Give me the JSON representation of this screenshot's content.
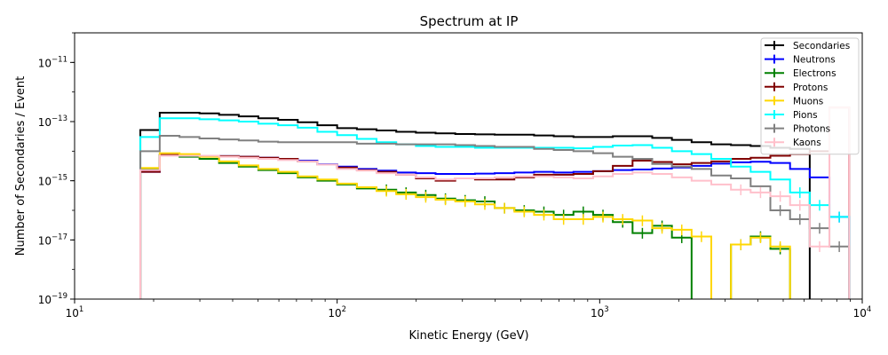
{
  "chart_data": {
    "type": "line",
    "title": "Spectrum at IP",
    "xlabel": "Kinetic Energy (GeV)",
    "ylabel": "Number of Secondaries / Event",
    "xscale": "log",
    "yscale": "log",
    "xlim": [
      10,
      10000
    ],
    "ylim": [
      1e-19,
      1e-10
    ],
    "x_major_ticks": [
      {
        "value": 10,
        "label": "10",
        "sup": "1"
      },
      {
        "value": 100,
        "label": "10",
        "sup": "2"
      },
      {
        "value": 1000,
        "label": "10",
        "sup": "3"
      },
      {
        "value": 10000,
        "label": "10",
        "sup": "4"
      }
    ],
    "y_major_ticks": [
      {
        "value": 1e-19,
        "label": "10",
        "sup": "−19"
      },
      {
        "value": 1e-17,
        "label": "10",
        "sup": "−17"
      },
      {
        "value": 1e-15,
        "label": "10",
        "sup": "−15"
      },
      {
        "value": 1e-13,
        "label": "10",
        "sup": "−13"
      },
      {
        "value": 1e-11,
        "label": "10",
        "sup": "−11"
      }
    ],
    "legend_position": "top-right",
    "style": "step histogram with error bars",
    "bin_edges": [
      17.8,
      21.1,
      25.1,
      29.9,
      35.5,
      42.2,
      50.1,
      59.6,
      70.8,
      84.1,
      100,
      118.9,
      141.3,
      167.9,
      199.5,
      237.1,
      281.8,
      335,
      398.1,
      473.2,
      562.3,
      668.3,
      794.3,
      944.1,
      1122,
      1334,
      1585,
      1884,
      2239,
      2661,
      3162,
      3758,
      4467,
      5309,
      6310,
      7499,
      8913
    ],
    "series": [
      {
        "name": "Secondaries",
        "color": "#000000",
        "values": [
          5.2e-14,
          2e-13,
          2e-13,
          1.9e-13,
          1.7e-13,
          1.5e-13,
          1.3e-13,
          1.15e-13,
          9.5e-14,
          7.5e-14,
          6e-14,
          5.5e-14,
          5e-14,
          4.5e-14,
          4.2e-14,
          4e-14,
          3.8e-14,
          3.7e-14,
          3.6e-14,
          3.6e-14,
          3.4e-14,
          3.2e-14,
          3e-14,
          3e-14,
          3.2e-14,
          3.2e-14,
          2.8e-14,
          2.4e-14,
          2e-14,
          1.7e-14,
          1.6e-14,
          1.5e-14,
          1.3e-14,
          1.2e-14,
          null,
          null
        ]
      },
      {
        "name": "Neutrons",
        "color": "#0000ff",
        "values": [
          2e-15,
          7.5e-15,
          7.5e-15,
          7e-15,
          6.8e-15,
          6.5e-15,
          6e-15,
          5.5e-15,
          4.8e-15,
          3.6e-15,
          3e-15,
          2.5e-15,
          2.2e-15,
          1.9e-15,
          1.8e-15,
          1.7e-15,
          1.7e-15,
          1.75e-15,
          1.8e-15,
          1.9e-15,
          2e-15,
          1.9e-15,
          2e-15,
          2.1e-15,
          2.3e-15,
          2.4e-15,
          2.6e-15,
          2.8e-15,
          3.2e-15,
          3.8e-15,
          4.2e-15,
          4.4e-15,
          4e-15,
          2.5e-15,
          1.3e-15,
          6e-17
        ]
      },
      {
        "name": "Electrons",
        "color": "#008000",
        "values": [
          2.5e-15,
          7.5e-15,
          6.5e-15,
          5.5e-15,
          4e-15,
          3e-15,
          2.3e-15,
          1.8e-15,
          1.3e-15,
          1e-15,
          7.5e-16,
          5.5e-16,
          5e-16,
          4e-16,
          3.3e-16,
          2.5e-16,
          2.2e-16,
          2e-16,
          1.2e-16,
          1e-16,
          9e-17,
          7e-17,
          9e-17,
          7e-17,
          4e-17,
          1.7e-17,
          3e-17,
          1.2e-17,
          null,
          null,
          7e-18,
          1.3e-17,
          5e-18,
          null,
          null,
          null
        ]
      },
      {
        "name": "Protons",
        "color": "#800000",
        "values": [
          2e-15,
          7.5e-15,
          7.5e-15,
          7e-15,
          6.8e-15,
          6.5e-15,
          6e-15,
          5.5e-15,
          4.5e-15,
          3.5e-15,
          2.8e-15,
          2.3e-15,
          2e-15,
          1.6e-15,
          1.2e-15,
          1e-15,
          1.2e-15,
          1.1e-15,
          1.1e-15,
          1.3e-15,
          1.6e-15,
          1.6e-15,
          1.7e-15,
          2.1e-15,
          3.2e-15,
          4.8e-15,
          4.3e-15,
          3.6e-15,
          4e-15,
          4.5e-15,
          5.5e-15,
          6e-15,
          7e-15,
          8e-15,
          1e-14,
          3e-13
        ]
      },
      {
        "name": "Muons",
        "color": "#ffd700",
        "values": [
          2.7e-15,
          8.5e-15,
          8e-15,
          6.5e-15,
          4.5e-15,
          3.3e-15,
          2.5e-15,
          2e-15,
          1.4e-15,
          1.1e-15,
          8e-16,
          6e-16,
          4.5e-16,
          3.5e-16,
          2.8e-16,
          2.3e-16,
          2e-16,
          1.6e-16,
          1.2e-16,
          9e-17,
          7e-17,
          5e-17,
          5e-17,
          6e-17,
          5e-17,
          4.5e-17,
          2.5e-17,
          2.2e-17,
          1.3e-17,
          null,
          7e-18,
          1.2e-17,
          6e-18,
          null,
          null,
          null
        ]
      },
      {
        "name": "Pions",
        "color": "#00ffff",
        "values": [
          3e-14,
          1.3e-13,
          1.3e-13,
          1.2e-13,
          1.1e-13,
          1e-13,
          8.5e-14,
          7.5e-14,
          6.2e-14,
          4.5e-14,
          3.5e-14,
          2.6e-14,
          2e-14,
          1.7e-14,
          1.5e-14,
          1.4e-14,
          1.4e-14,
          1.3e-14,
          1.3e-14,
          1.3e-14,
          1.3e-14,
          1.3e-14,
          1.25e-14,
          1.4e-14,
          1.55e-14,
          1.6e-14,
          1.3e-14,
          1e-14,
          8e-15,
          5.5e-15,
          3e-15,
          2e-15,
          1.1e-15,
          4e-16,
          1.5e-16,
          6e-17
        ]
      },
      {
        "name": "Photons",
        "color": "#808080",
        "values": [
          1e-14,
          3.3e-14,
          3e-14,
          2.7e-14,
          2.5e-14,
          2.3e-14,
          2.1e-14,
          2e-14,
          2e-14,
          2e-14,
          2e-14,
          1.8e-14,
          1.8e-14,
          1.7e-14,
          1.7e-14,
          1.7e-14,
          1.6e-14,
          1.5e-14,
          1.4e-14,
          1.4e-14,
          1.2e-14,
          1.1e-14,
          1e-14,
          8.5e-15,
          6.5e-15,
          5.5e-15,
          3.7e-15,
          3e-15,
          2.5e-15,
          1.5e-15,
          1.2e-15,
          6.5e-16,
          1e-16,
          5e-17,
          2.5e-17,
          6e-18
        ]
      },
      {
        "name": "Kaons",
        "color": "#ffc0cb",
        "values": [
          2.3e-15,
          7e-15,
          7e-15,
          7e-15,
          6.5e-15,
          6e-15,
          5.5e-15,
          5e-15,
          4.5e-15,
          3.5e-15,
          2.5e-15,
          2.2e-15,
          1.8e-15,
          1.6e-15,
          1.3e-15,
          1.1e-15,
          1.2e-15,
          1.2e-15,
          1.3e-15,
          1.4e-15,
          1.4e-15,
          1.3e-15,
          1.2e-15,
          1.4e-15,
          1.7e-15,
          1.9e-15,
          1.7e-15,
          1.3e-15,
          1e-15,
          7.5e-16,
          5e-16,
          4e-16,
          3e-16,
          1.5e-16,
          6e-18,
          3e-13
        ]
      }
    ]
  }
}
